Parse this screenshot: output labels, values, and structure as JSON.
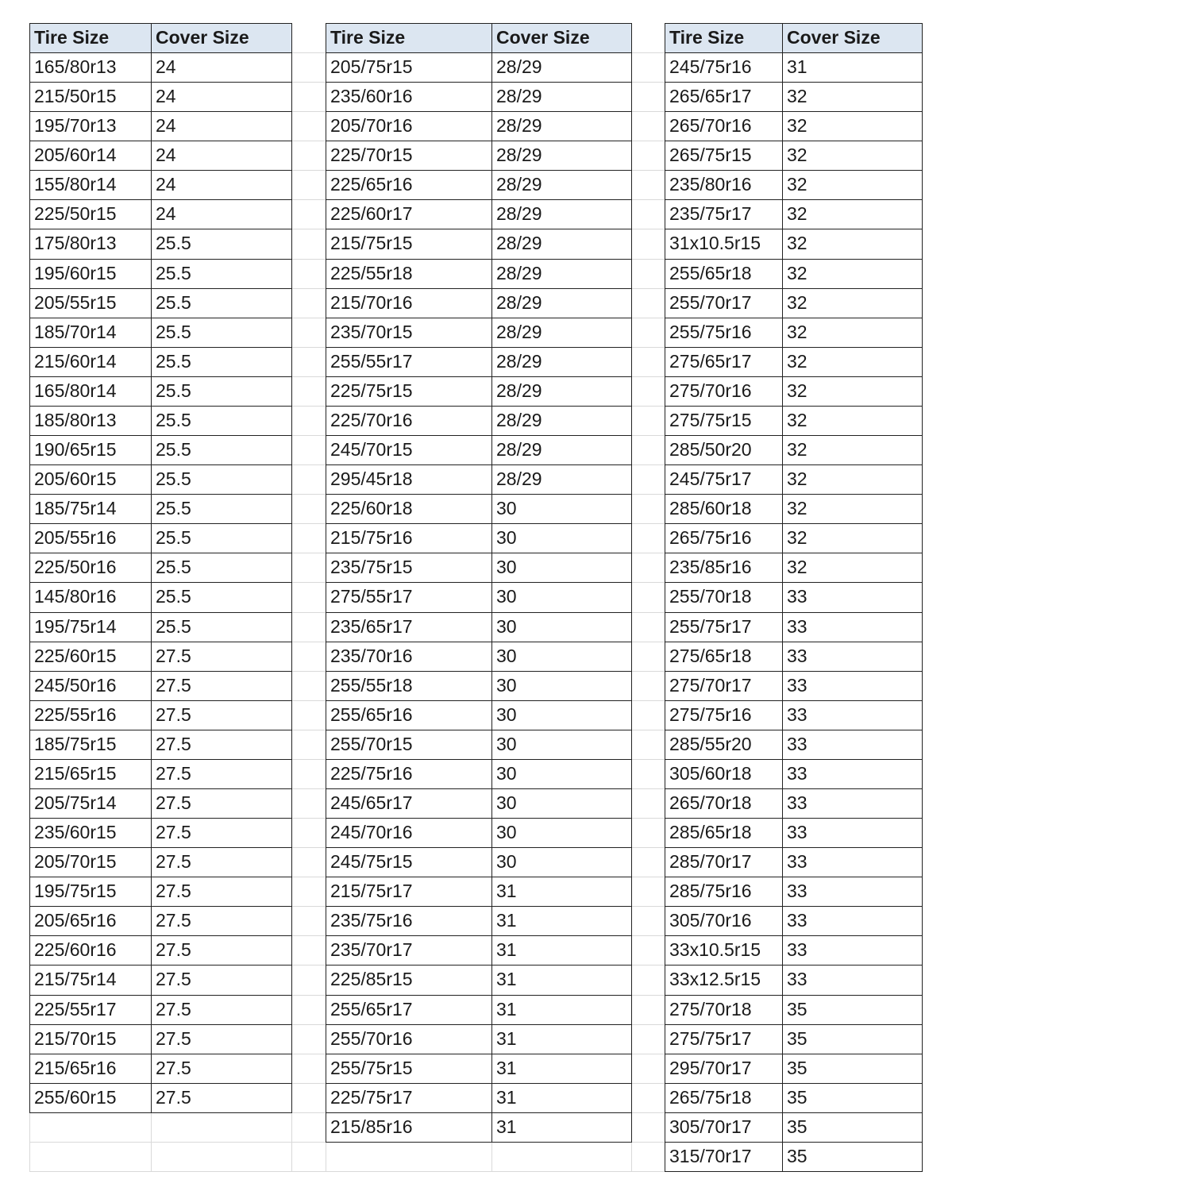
{
  "tables": [
    {
      "headers": [
        "Tire Size",
        "Cover Size"
      ],
      "rows": [
        [
          "165/80r13",
          "24"
        ],
        [
          "215/50r15",
          "24"
        ],
        [
          "195/70r13",
          "24"
        ],
        [
          "205/60r14",
          "24"
        ],
        [
          "155/80r14",
          "24"
        ],
        [
          "225/50r15",
          "24"
        ],
        [
          "175/80r13",
          "25.5"
        ],
        [
          "195/60r15",
          "25.5"
        ],
        [
          "205/55r15",
          "25.5"
        ],
        [
          "185/70r14",
          "25.5"
        ],
        [
          "215/60r14",
          "25.5"
        ],
        [
          "165/80r14",
          "25.5"
        ],
        [
          "185/80r13",
          "25.5"
        ],
        [
          "190/65r15",
          "25.5"
        ],
        [
          "205/60r15",
          "25.5"
        ],
        [
          "185/75r14",
          "25.5"
        ],
        [
          "205/55r16",
          "25.5"
        ],
        [
          "225/50r16",
          "25.5"
        ],
        [
          "145/80r16",
          "25.5"
        ],
        [
          "195/75r14",
          "25.5"
        ],
        [
          "225/60r15",
          "27.5"
        ],
        [
          "245/50r16",
          "27.5"
        ],
        [
          "225/55r16",
          "27.5"
        ],
        [
          "185/75r15",
          "27.5"
        ],
        [
          "215/65r15",
          "27.5"
        ],
        [
          "205/75r14",
          "27.5"
        ],
        [
          "235/60r15",
          "27.5"
        ],
        [
          "205/70r15",
          "27.5"
        ],
        [
          "195/75r15",
          "27.5"
        ],
        [
          "205/65r16",
          "27.5"
        ],
        [
          "225/60r16",
          "27.5"
        ],
        [
          "215/75r14",
          "27.5"
        ],
        [
          "225/55r17",
          "27.5"
        ],
        [
          "215/70r15",
          "27.5"
        ],
        [
          "215/65r16",
          "27.5"
        ],
        [
          "255/60r15",
          "27.5"
        ]
      ]
    },
    {
      "headers": [
        "Tire Size",
        "Cover Size"
      ],
      "rows": [
        [
          "205/75r15",
          "28/29"
        ],
        [
          "235/60r16",
          "28/29"
        ],
        [
          "205/70r16",
          "28/29"
        ],
        [
          "225/70r15",
          "28/29"
        ],
        [
          "225/65r16",
          "28/29"
        ],
        [
          "225/60r17",
          "28/29"
        ],
        [
          "215/75r15",
          "28/29"
        ],
        [
          "225/55r18",
          "28/29"
        ],
        [
          "215/70r16",
          "28/29"
        ],
        [
          "235/70r15",
          "28/29"
        ],
        [
          "255/55r17",
          "28/29"
        ],
        [
          "225/75r15",
          "28/29"
        ],
        [
          "225/70r16",
          "28/29"
        ],
        [
          "245/70r15",
          "28/29"
        ],
        [
          "295/45r18",
          "28/29"
        ],
        [
          "225/60r18",
          "30"
        ],
        [
          "215/75r16",
          "30"
        ],
        [
          "235/75r15",
          "30"
        ],
        [
          "275/55r17",
          "30"
        ],
        [
          "235/65r17",
          "30"
        ],
        [
          "235/70r16",
          "30"
        ],
        [
          "255/55r18",
          "30"
        ],
        [
          "255/65r16",
          "30"
        ],
        [
          "255/70r15",
          "30"
        ],
        [
          "225/75r16",
          "30"
        ],
        [
          "245/65r17",
          "30"
        ],
        [
          "245/70r16",
          "30"
        ],
        [
          "245/75r15",
          "30"
        ],
        [
          "215/75r17",
          "31"
        ],
        [
          "235/75r16",
          "31"
        ],
        [
          "235/70r17",
          "31"
        ],
        [
          "225/85r15",
          "31"
        ],
        [
          "255/65r17",
          "31"
        ],
        [
          "255/70r16",
          "31"
        ],
        [
          "255/75r15",
          "31"
        ],
        [
          "225/75r17",
          "31"
        ],
        [
          "215/85r16",
          "31"
        ]
      ]
    },
    {
      "headers": [
        "Tire Size",
        "Cover Size"
      ],
      "rows": [
        [
          "245/75r16",
          "31"
        ],
        [
          "265/65r17",
          "32"
        ],
        [
          "265/70r16",
          "32"
        ],
        [
          "265/75r15",
          "32"
        ],
        [
          "235/80r16",
          "32"
        ],
        [
          "235/75r17",
          "32"
        ],
        [
          "31x10.5r15",
          "32"
        ],
        [
          "255/65r18",
          "32"
        ],
        [
          "255/70r17",
          "32"
        ],
        [
          "255/75r16",
          "32"
        ],
        [
          "275/65r17",
          "32"
        ],
        [
          "275/70r16",
          "32"
        ],
        [
          "275/75r15",
          "32"
        ],
        [
          "285/50r20",
          "32"
        ],
        [
          "245/75r17",
          "32"
        ],
        [
          "285/60r18",
          "32"
        ],
        [
          "265/75r16",
          "32"
        ],
        [
          "235/85r16",
          "32"
        ],
        [
          "255/70r18",
          "33"
        ],
        [
          "255/75r17",
          "33"
        ],
        [
          "275/65r18",
          "33"
        ],
        [
          "275/70r17",
          "33"
        ],
        [
          "275/75r16",
          "33"
        ],
        [
          "285/55r20",
          "33"
        ],
        [
          "305/60r18",
          "33"
        ],
        [
          "265/70r18",
          "33"
        ],
        [
          "285/65r18",
          "33"
        ],
        [
          "285/70r17",
          "33"
        ],
        [
          "285/75r16",
          "33"
        ],
        [
          "305/70r16",
          "33"
        ],
        [
          "33x10.5r15",
          "33"
        ],
        [
          "33x12.5r15",
          "33"
        ],
        [
          "275/70r18",
          "35"
        ],
        [
          "275/75r17",
          "35"
        ],
        [
          "295/70r17",
          "35"
        ],
        [
          "265/75r18",
          "35"
        ],
        [
          "305/70r17",
          "35"
        ],
        [
          "315/70r17",
          "35"
        ]
      ]
    }
  ],
  "colors": {
    "header_bg": "#dce6f1",
    "border": "#222222",
    "gridline": "#d9d9d9"
  }
}
